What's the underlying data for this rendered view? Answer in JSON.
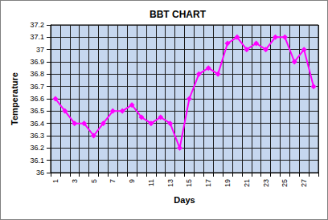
{
  "chart_data": {
    "type": "line",
    "title": "BBT CHART",
    "x_label": "Days",
    "y_label": "Temperature",
    "categories": [
      1,
      null,
      3,
      null,
      5,
      null,
      7,
      null,
      9,
      null,
      11,
      null,
      13,
      null,
      15,
      null,
      17,
      null,
      19,
      null,
      21,
      null,
      23,
      null,
      25,
      null,
      27,
      null
    ],
    "values": [
      36.6,
      36.5,
      36.4,
      36.4,
      36.3,
      36.4,
      36.5,
      36.5,
      36.55,
      36.45,
      36.4,
      36.45,
      36.4,
      36.2,
      36.6,
      36.8,
      36.85,
      36.8,
      37.05,
      37.1,
      37.0,
      37.05,
      37.0,
      37.1,
      37.1,
      36.9,
      37.0,
      36.7
    ],
    "color": "#ff00ff",
    "marker": "diamond",
    "ylim": [
      36,
      37.2
    ],
    "yticks": [
      36,
      36.1,
      36.2,
      36.3,
      36.4,
      36.5,
      36.6,
      36.7,
      36.8,
      36.9,
      37,
      37.1,
      37.2
    ],
    "grid": true
  }
}
